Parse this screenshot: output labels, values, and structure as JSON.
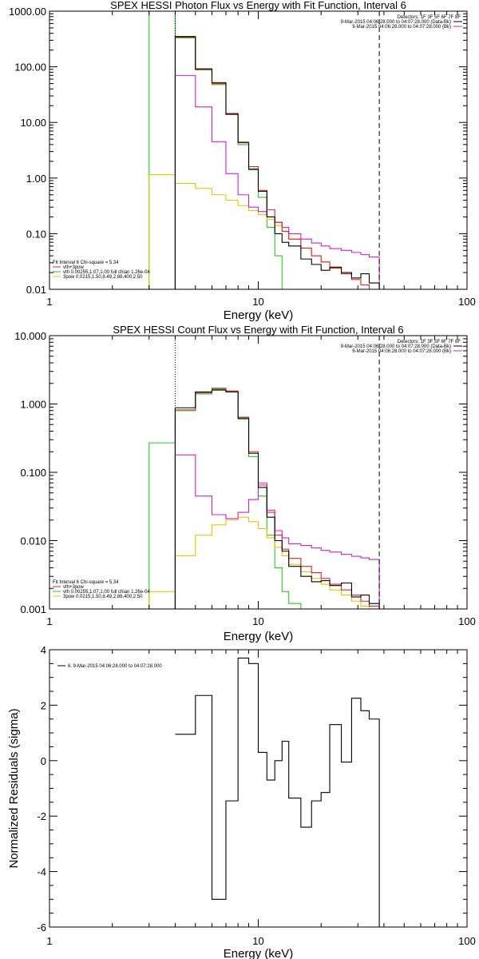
{
  "colors": {
    "total": "#000000",
    "vth_3pow": "#e8202a",
    "vth": "#22cc22",
    "powerlaw": "#e6c800",
    "bk": "#cc22cc",
    "background": "#ffffff"
  },
  "chart_data": [
    {
      "type": "line",
      "step": true,
      "title": "SPEX HESSI Photon Flux vs Energy with Fit Function, Interval 6",
      "xlabel": "Energy (keV)",
      "ylabel": "",
      "xscale": "log",
      "yscale": "log",
      "xlim": [
        1,
        100
      ],
      "ylim": [
        0.01,
        1000
      ],
      "xticks": [
        "1",
        "10",
        "100"
      ],
      "yticks": [
        "0.01",
        "0.10",
        "1.00",
        "10.00",
        "100.00",
        "1000.00"
      ],
      "vlines": [
        {
          "x": 4.0,
          "style": "dotted",
          "color": "#000000"
        },
        {
          "x": 38.0,
          "style": "dashed",
          "color": "#000000"
        }
      ],
      "legend_top": [
        {
          "text": "Detectors: 1F 3F 5F 6F 7F 8F",
          "color": "#000000"
        },
        {
          "text": "9-Mar-2015 04:06:28.000 to 04:07:28.000 (Data-Bk)",
          "color": "#000000"
        },
        {
          "text": "9-Mar-2015 04:06:28.000 to 04:07:28.000 (Bk)",
          "color": "#cc22cc"
        }
      ],
      "legend_bottom": [
        {
          "text": "Fit Interval 6   Chi-square = 5.34",
          "color": "#000000"
        },
        {
          "text": "vth+3pow",
          "color": "#e8202a"
        },
        {
          "text": "vth 0.00255,1.07,1.00  full chian 1.26e-04",
          "color": "#22cc22"
        },
        {
          "text": "3pow 0.0215,1.50,8.49,2.88,400,2.50",
          "color": "#e6c800"
        }
      ],
      "edges": [
        3.0,
        4.0,
        5.0,
        6.0,
        7.0,
        8.0,
        9.0,
        10.0,
        11.0,
        12.0,
        13.0,
        14.0,
        16.0,
        18.0,
        20.0,
        22.0,
        25.0,
        28.0,
        31.0,
        34.0,
        38.0
      ],
      "series": [
        {
          "name": "",
          "color": "#22cc22",
          "values": [
            1000,
            330,
            88,
            48,
            14,
            4.0,
            1.4,
            0.45,
            0.13,
            0.04,
            0.01,
            null,
            null,
            null,
            null,
            null,
            null,
            null,
            null,
            null
          ]
        },
        {
          "name": "",
          "color": "#e6c800",
          "values": [
            1.15,
            0.8,
            0.65,
            0.5,
            0.4,
            0.32,
            0.26,
            0.22,
            0.18,
            0.14,
            0.11,
            0.08,
            0.055,
            0.04,
            0.031,
            0.024,
            0.019,
            0.015,
            0.012,
            0.01
          ]
        },
        {
          "name": "",
          "color": "#cc22cc",
          "values": [
            null,
            70,
            19,
            4.5,
            1.2,
            0.5,
            0.3,
            0.25,
            0.2,
            0.16,
            0.13,
            0.1,
            0.08,
            0.068,
            0.06,
            0.054,
            0.05,
            0.046,
            0.042,
            0.038
          ]
        },
        {
          "name": "",
          "color": "#e8202a",
          "values": [
            null,
            340,
            90,
            50,
            14.5,
            4.3,
            1.6,
            0.6,
            0.27,
            0.16,
            0.11,
            0.08,
            0.055,
            0.04,
            0.031,
            0.024,
            0.019,
            0.015,
            0.012,
            0.01
          ]
        },
        {
          "name": "",
          "color": "#000000",
          "values": [
            null,
            350,
            92,
            52,
            14,
            4.4,
            1.45,
            0.58,
            0.2,
            0.1,
            0.07,
            0.06,
            0.035,
            0.028,
            0.022,
            0.025,
            0.02,
            0.016,
            0.019,
            0.013
          ]
        }
      ]
    },
    {
      "type": "line",
      "step": true,
      "title": "SPEX HESSI Count Flux vs Energy with Fit Function, Interval 6",
      "xlabel": "Energy (keV)",
      "ylabel": "",
      "xscale": "log",
      "yscale": "log",
      "xlim": [
        1,
        100
      ],
      "ylim": [
        0.001,
        10
      ],
      "xticks": [
        "1",
        "10",
        "100"
      ],
      "yticks": [
        "0.001",
        "0.010",
        "0.100",
        "1.000",
        "10.000"
      ],
      "vlines": [
        {
          "x": 4.0,
          "style": "dotted",
          "color": "#000000"
        },
        {
          "x": 38.0,
          "style": "dashed",
          "color": "#000000"
        }
      ],
      "legend_top": [
        {
          "text": "Detectors: 1F 3F 5F 6F 7F 8F",
          "color": "#000000"
        },
        {
          "text": "9-Mar-2015 04:06:28.000 to 04:07:28.000 (Data-Bk)",
          "color": "#000000"
        },
        {
          "text": "9-Mar-2015 04:06:28.000 to 04:07:28.000 (Bk)",
          "color": "#cc22cc"
        }
      ],
      "legend_bottom": [
        {
          "text": "Fit Interval 6   Chi-square = 5.34",
          "color": "#000000"
        },
        {
          "text": "vth+3pow",
          "color": "#e8202a"
        },
        {
          "text": "vth 0.00255,1.07,1.00  full chian 1.26e-04",
          "color": "#22cc22"
        },
        {
          "text": "3pow 0.0215,1.50,8.49,2.88,400,2.50",
          "color": "#e6c800"
        }
      ],
      "edges": [
        3.0,
        4.0,
        5.0,
        6.0,
        7.0,
        8.0,
        9.0,
        10.0,
        11.0,
        12.0,
        13.0,
        14.0,
        16.0,
        18.0,
        20.0,
        22.0,
        25.0,
        28.0,
        31.0,
        34.0,
        38.0
      ],
      "series": [
        {
          "name": "",
          "color": "#22cc22",
          "values": [
            0.27,
            0.8,
            1.4,
            1.65,
            1.5,
            0.6,
            0.17,
            0.045,
            0.012,
            0.004,
            0.0018,
            0.0012,
            null,
            null,
            null,
            null,
            null,
            null,
            null,
            null
          ]
        },
        {
          "name": "",
          "color": "#e6c800",
          "values": [
            0.0018,
            0.006,
            0.012,
            0.017,
            0.02,
            0.022,
            0.019,
            0.015,
            0.011,
            0.008,
            0.006,
            0.0045,
            0.0035,
            0.0028,
            0.0023,
            0.0019,
            0.0016,
            0.0013,
            0.0011,
            0.00095
          ]
        },
        {
          "name": "",
          "color": "#cc22cc",
          "values": [
            null,
            0.18,
            0.045,
            0.024,
            0.021,
            0.026,
            0.04,
            0.07,
            0.028,
            0.014,
            0.011,
            0.009,
            0.0085,
            0.0078,
            0.0072,
            0.0068,
            0.0063,
            0.0059,
            0.0056,
            0.0053
          ]
        },
        {
          "name": "",
          "color": "#e8202a",
          "values": [
            null,
            0.82,
            1.45,
            1.7,
            1.55,
            0.64,
            0.2,
            0.065,
            0.026,
            0.012,
            0.0075,
            0.0055,
            0.0042,
            0.0034,
            0.0028,
            0.0023,
            0.0019,
            0.0016,
            0.0013,
            0.0011
          ]
        },
        {
          "name": "",
          "color": "#000000",
          "values": [
            null,
            0.88,
            1.5,
            1.6,
            1.5,
            0.62,
            0.19,
            0.06,
            0.022,
            0.01,
            0.007,
            0.0042,
            0.003,
            0.0025,
            0.0026,
            0.0022,
            0.0024,
            0.0015,
            0.0016,
            0.0012
          ]
        }
      ]
    },
    {
      "type": "line",
      "step": true,
      "title": "",
      "xlabel": "Energy (keV)",
      "ylabel": "Normalized Residuals (sigma)",
      "xscale": "log",
      "yscale": "linear",
      "xlim": [
        1,
        100
      ],
      "ylim": [
        -6,
        4
      ],
      "xticks": [
        "1",
        "10",
        "100"
      ],
      "yticks": [
        "-6",
        "-4",
        "-2",
        "0",
        "2",
        "4"
      ],
      "vlines": [],
      "legend_top_left": {
        "text": "6. 9-Mar-2015 04:06:28.000 to 04:07:28.000",
        "color": "#000000"
      },
      "edges": [
        4.0,
        5.0,
        6.0,
        7.0,
        8.0,
        9.0,
        10.0,
        11.0,
        12.0,
        13.0,
        14.0,
        16.0,
        18.0,
        20.0,
        22.0,
        25.0,
        28.0,
        31.0,
        34.0,
        38.0
      ],
      "series": [
        {
          "name": "",
          "color": "#000000",
          "values": [
            0.95,
            2.35,
            -5.0,
            -1.45,
            3.7,
            3.5,
            0.3,
            -0.7,
            0.0,
            0.7,
            -1.35,
            -2.4,
            -1.45,
            -1.15,
            1.3,
            -0.05,
            2.25,
            1.8,
            1.5
          ]
        }
      ]
    }
  ]
}
